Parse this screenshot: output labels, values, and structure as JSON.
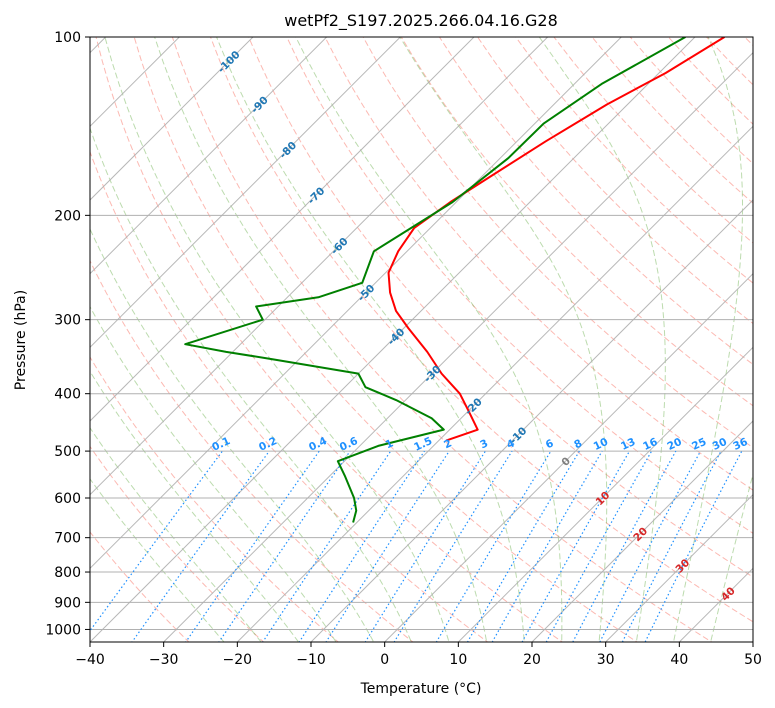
{
  "chart_data": {
    "type": "line",
    "subtype": "skew-T log-p diagram",
    "title": "wetPf2_S197.2025.266.04.16.G28",
    "xlabel": "Temperature (°C)",
    "ylabel": "Pressure (hPa)",
    "xlim": [
      -40,
      50
    ],
    "ylim": [
      1050,
      100
    ],
    "x_ticks": [
      -40,
      -30,
      -20,
      -10,
      0,
      10,
      20,
      30,
      40,
      50
    ],
    "x_tick_labels": [
      "−40",
      "−30",
      "−20",
      "−10",
      "0",
      "10",
      "20",
      "30",
      "40",
      "50"
    ],
    "y_ticks": [
      100,
      200,
      300,
      400,
      500,
      600,
      700,
      800,
      900,
      1000
    ],
    "y_tick_labels": [
      "100",
      "200",
      "300",
      "400",
      "500",
      "600",
      "700",
      "800",
      "900",
      "1000"
    ],
    "grid": true,
    "colors": {
      "temperature": "#ff0000",
      "dewpoint": "#008000",
      "dry_adiabat": "#fa8072",
      "moist_adiabat": "#6ab04c",
      "mixing_ratio": "#1e90ff",
      "isotherm_label": "#1f77b4",
      "isotherm": "#7f7f7f",
      "grid": "#b0b0b0",
      "skew_label_hot": "#d62728"
    },
    "series": [
      {
        "name": "Temperature",
        "color": "#ff0000",
        "points": [
          {
            "t": -36.0,
            "p": 100
          },
          {
            "t": -39.1,
            "p": 115
          },
          {
            "t": -42.8,
            "p": 130
          },
          {
            "t": -46.1,
            "p": 150
          },
          {
            "t": -48.6,
            "p": 170
          },
          {
            "t": -50.8,
            "p": 190
          },
          {
            "t": -52.2,
            "p": 210
          },
          {
            "t": -51.2,
            "p": 230
          },
          {
            "t": -49.6,
            "p": 250
          },
          {
            "t": -46.7,
            "p": 270
          },
          {
            "t": -43.4,
            "p": 290
          },
          {
            "t": -39.4,
            "p": 310
          },
          {
            "t": -33.6,
            "p": 340
          },
          {
            "t": -28.7,
            "p": 370
          },
          {
            "t": -23.5,
            "p": 400
          },
          {
            "t": -19.7,
            "p": 430
          },
          {
            "t": -16.2,
            "p": 460
          },
          {
            "t": -19.0,
            "p": 480
          }
        ]
      },
      {
        "name": "Dewpoint",
        "color": "#008000",
        "points": [
          {
            "t": -41.3,
            "p": 100
          },
          {
            "t": -46.3,
            "p": 120
          },
          {
            "t": -48.8,
            "p": 140
          },
          {
            "t": -48.9,
            "p": 160
          },
          {
            "t": -50.5,
            "p": 190
          },
          {
            "t": -52.6,
            "p": 210
          },
          {
            "t": -54.5,
            "p": 230
          },
          {
            "t": -51.8,
            "p": 260
          },
          {
            "t": -55.8,
            "p": 275
          },
          {
            "t": -63.0,
            "p": 285
          },
          {
            "t": -60.3,
            "p": 300
          },
          {
            "t": -67.5,
            "p": 330
          },
          {
            "t": -60.9,
            "p": 340
          },
          {
            "t": -53.5,
            "p": 350
          },
          {
            "t": -40.0,
            "p": 370
          },
          {
            "t": -37.2,
            "p": 390
          },
          {
            "t": -31.3,
            "p": 410
          },
          {
            "t": -24.0,
            "p": 440
          },
          {
            "t": -20.8,
            "p": 460
          },
          {
            "t": -27.5,
            "p": 490
          },
          {
            "t": -30.9,
            "p": 520
          },
          {
            "t": -28.0,
            "p": 550
          },
          {
            "t": -23.7,
            "p": 600
          },
          {
            "t": -21.7,
            "p": 630
          },
          {
            "t": -20.5,
            "p": 660
          }
        ]
      }
    ],
    "labels": {
      "isotherm_labels": [
        "-100",
        "-90",
        "-80",
        "-70",
        "-60",
        "-50",
        "-40",
        "-30",
        "-20",
        "-10"
      ],
      "mixing_ratio_labels": [
        "0.1",
        "0.2",
        "0.4",
        "0.6",
        "1",
        "1.5",
        "2",
        "3",
        "4",
        "6",
        "8",
        "10",
        "13",
        "16",
        "20",
        "25",
        "30",
        "36"
      ],
      "zero_label": "0",
      "warm_isotherm_labels": [
        "10",
        "20",
        "30",
        "40"
      ]
    }
  }
}
